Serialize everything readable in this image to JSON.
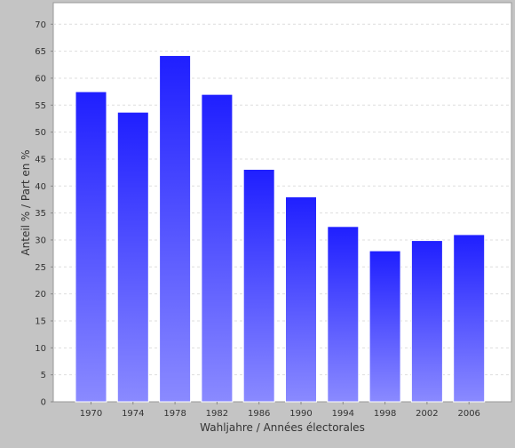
{
  "chart_data": {
    "type": "bar",
    "title": "",
    "xlabel": "Wahljahre / Années électorales",
    "ylabel": "Anteil % / Part en %",
    "categories": [
      "1970",
      "1974",
      "1978",
      "1982",
      "1986",
      "1990",
      "1994",
      "1998",
      "2002",
      "2006"
    ],
    "values": [
      57.5,
      53.7,
      64.2,
      57.0,
      43.1,
      38.0,
      32.5,
      28.0,
      29.9,
      31.0
    ],
    "ylim": [
      0,
      74
    ],
    "yticks": [
      0,
      5,
      10,
      15,
      20,
      25,
      30,
      35,
      40,
      45,
      50,
      55,
      60,
      65,
      70
    ],
    "grid": true,
    "legend": "none"
  },
  "colors": {
    "background": "#c4c4c4",
    "plot_background": "#ffffff",
    "bar_top": "#1f1fff",
    "bar_bottom": "#8a8aff",
    "gridline": "#dddddd"
  }
}
